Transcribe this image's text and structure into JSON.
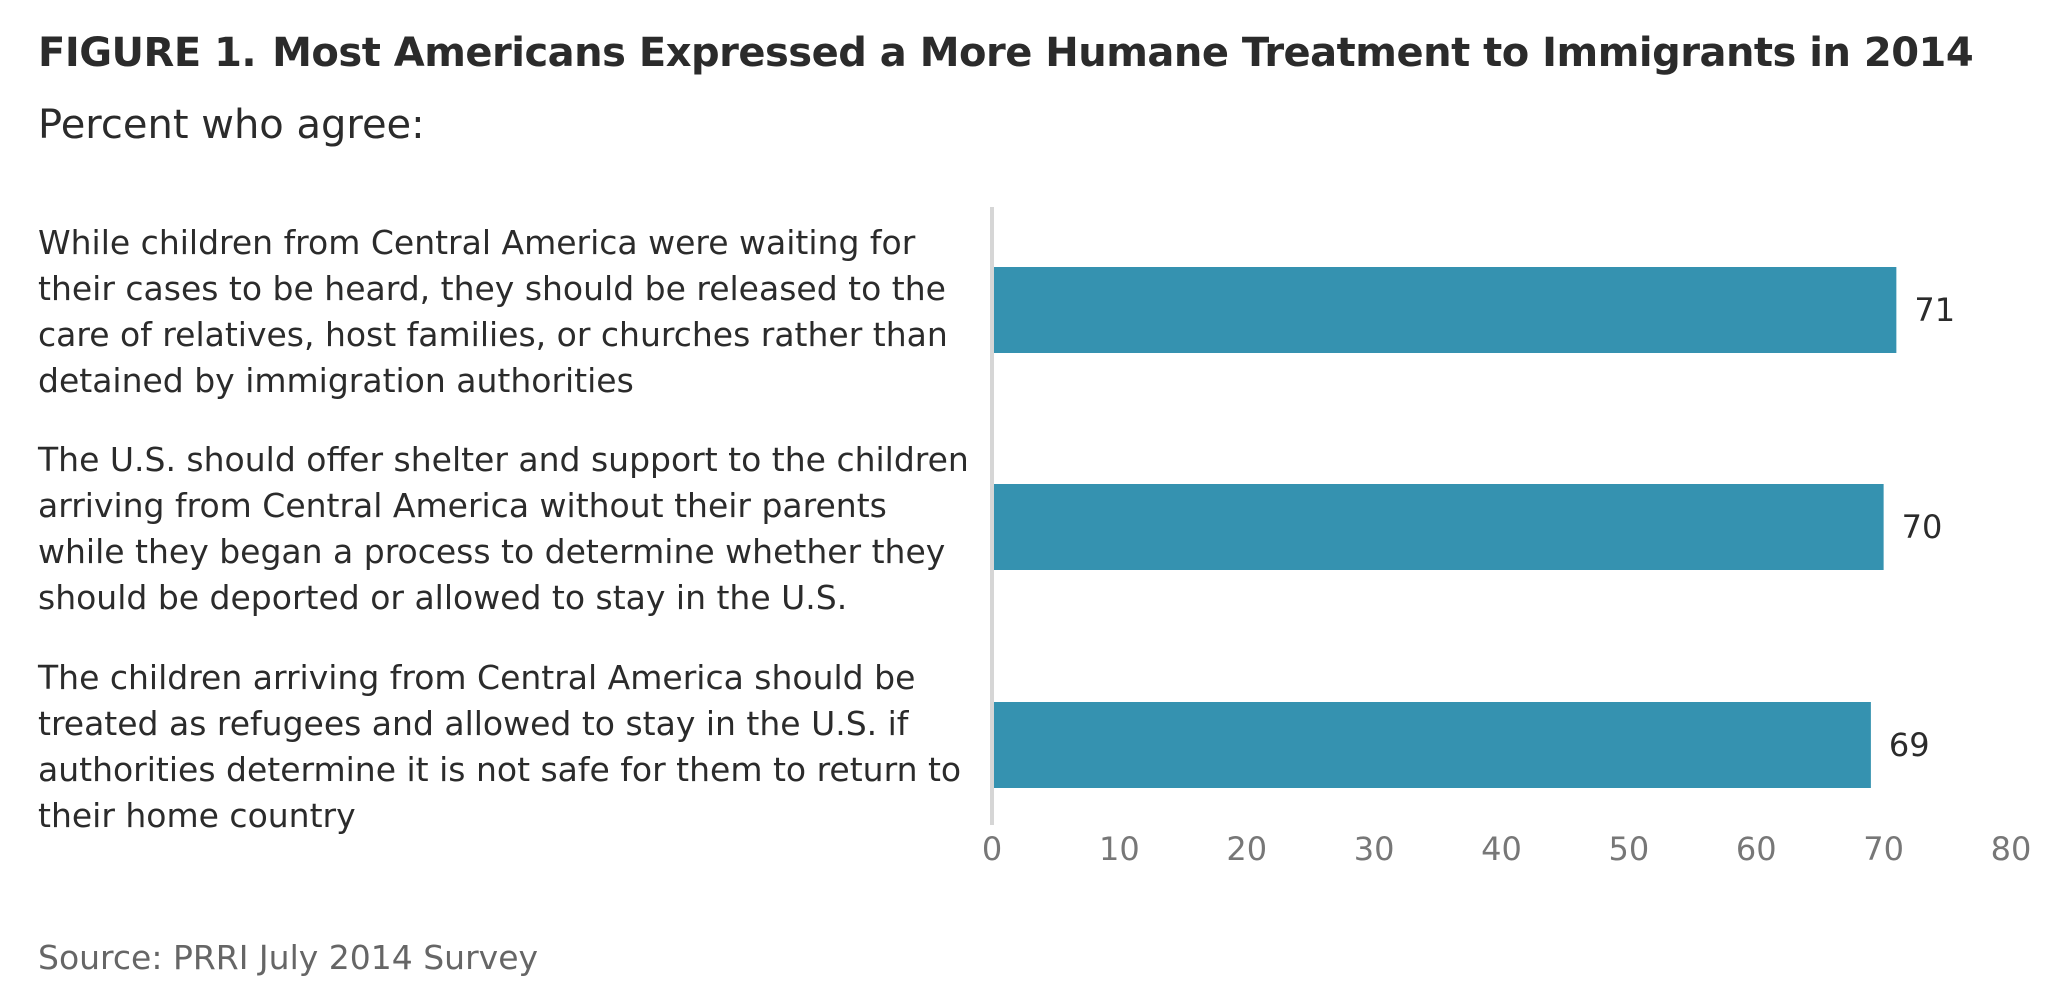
{
  "figure": {
    "number_label": "FIGURE 1.",
    "title": "Most Americans Expressed a More Humane Treatment to Immigrants in 2014",
    "subtitle": "Percent who agree:",
    "source": "Source: PRRI July 2014 Survey"
  },
  "colors": {
    "bar": "#3592b0",
    "axis": "#d6d6d6"
  },
  "chart_data": {
    "type": "bar",
    "orientation": "horizontal",
    "categories": [
      "While children from Central America were waiting for their cases to be heard, they should be released to the care of relatives, host families, or churches rather than detained by immigration authorities",
      "The U.S. should offer shelter and support to the children arriving from Central America without their parents while they began a process to determine whether they should be deported or allowed to stay in the U.S.",
      "The children arriving from Central America should be treated as refugees and allowed to stay in the U.S. if authorities determine it is not safe for them to return to their home country"
    ],
    "values": [
      71,
      70,
      69
    ],
    "xlim": [
      0,
      80
    ],
    "xticks": [
      0,
      10,
      20,
      30,
      40,
      50,
      60,
      70,
      80
    ],
    "grid": false,
    "legend": "none"
  }
}
